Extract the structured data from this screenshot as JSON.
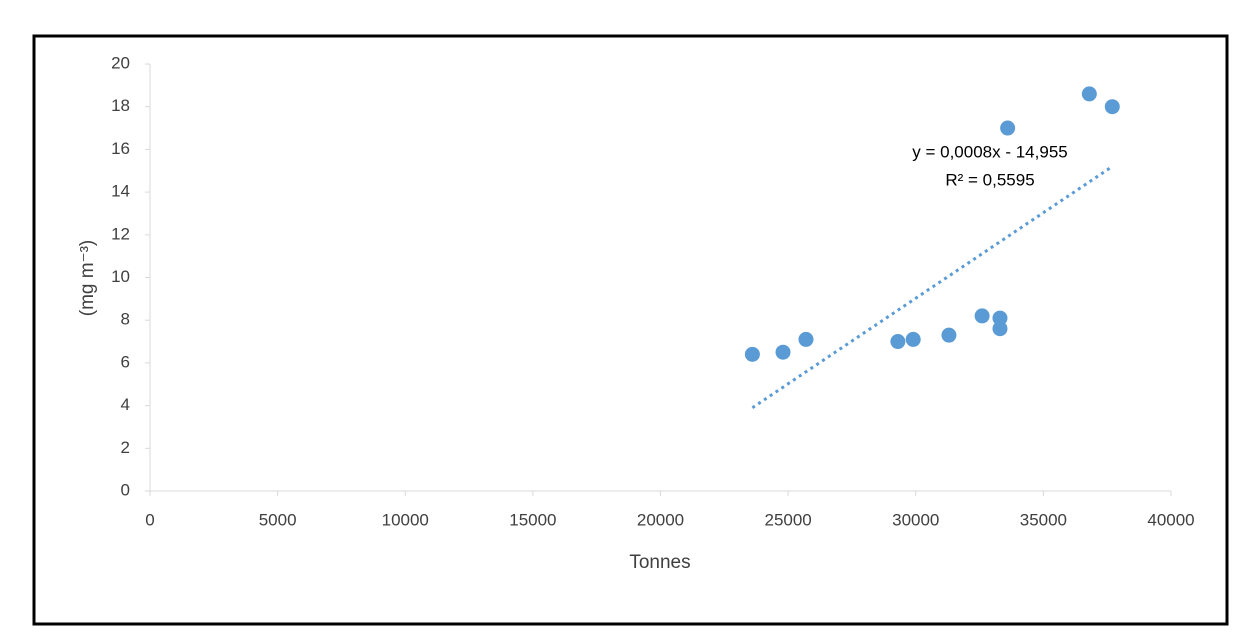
{
  "chart_data": {
    "type": "scatter",
    "x_label": "Tonnes",
    "y_label": "(mg m⁻³)",
    "x": [
      23600,
      24800,
      25700,
      29300,
      29900,
      31300,
      32600,
      33300,
      33300,
      33600,
      36800,
      37700
    ],
    "values": [
      6.4,
      6.5,
      7.1,
      7.0,
      7.1,
      7.3,
      8.2,
      8.1,
      7.6,
      17.0,
      18.6,
      18.0
    ],
    "color": "#5b9bd5",
    "trendline": {
      "x": [
        23600,
        37700
      ],
      "values": [
        3.9,
        15.2
      ],
      "color": "#5b9bd5"
    },
    "annotations": [
      "y = 0,0008x - 14,955",
      "R² = 0,5595"
    ],
    "xlim": [
      0,
      40000
    ],
    "xticks": [
      0,
      5000,
      10000,
      15000,
      20000,
      25000,
      30000,
      35000,
      40000
    ],
    "ylim": [
      0,
      20
    ],
    "yticks": [
      0,
      2,
      4,
      6,
      8,
      10,
      12,
      14,
      16,
      18,
      20
    ],
    "grid": false
  }
}
